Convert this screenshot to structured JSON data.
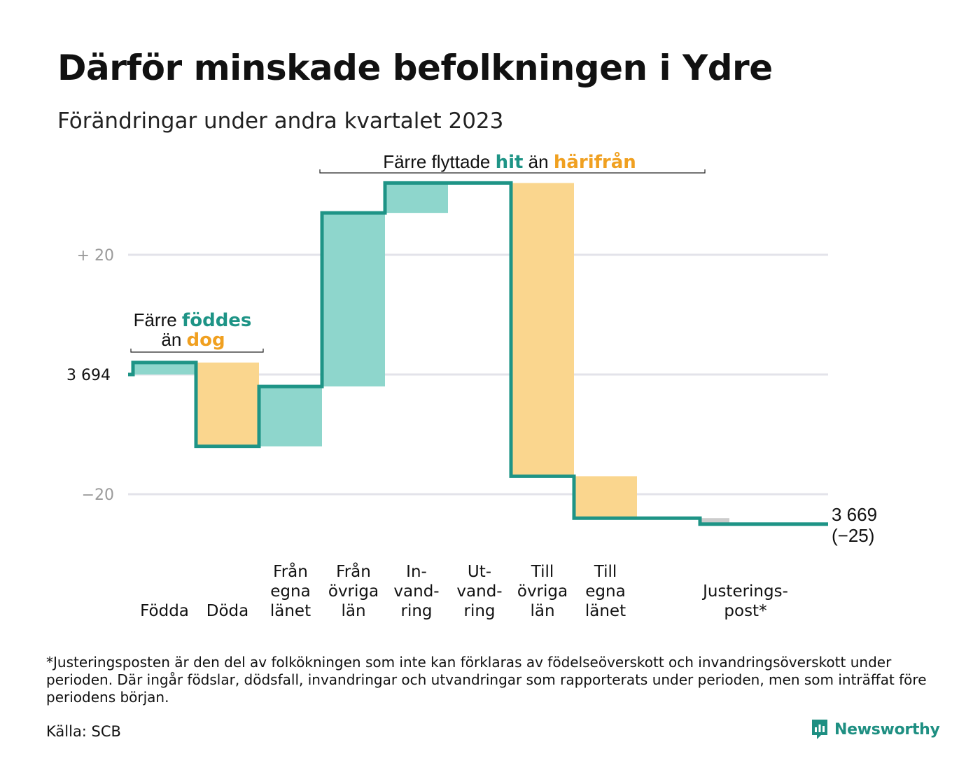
{
  "title": "Därför minskade befolkningen i Ydre",
  "subtitle": "Förändringar under andra kvartalet 2023",
  "footnote": "*Justeringsposten är den del av folkökningen som inte kan förklaras av födelseöverskott och invandringsöverskott under perioden. Där ingår födslar, dödsfall, invandringar och utvandringar som rapporterats under perioden, men som inträffat före periodens början.",
  "source": "Källa: SCB",
  "brand": "Newsworthy",
  "colors": {
    "teal_line": "#1e9486",
    "teal_fill": "#8ed6cc",
    "orange_fill": "#fad68e",
    "orange_text": "#f0a020",
    "teal_text": "#1e9486",
    "gray_fill": "#cccccc",
    "grid": "#e3e3ea"
  },
  "chart_data": {
    "type": "waterfall",
    "start_value": 3694,
    "end_value": 3669,
    "end_label": [
      "3 669",
      "(−25)"
    ],
    "start_label": "3  694",
    "y_ticks": [
      {
        "value": 20,
        "label": "+  20"
      },
      {
        "value": -20,
        "label": "−20"
      }
    ],
    "ylim": [
      -25,
      32
    ],
    "grid": true,
    "steps": [
      {
        "category": [
          "Födda"
        ],
        "change": 2,
        "kind": "in"
      },
      {
        "category": [
          "Döda"
        ],
        "change": -14,
        "kind": "out"
      },
      {
        "category": [
          "Från",
          "egna",
          "länet"
        ],
        "change": 10,
        "kind": "in"
      },
      {
        "category": [
          "Från",
          "övriga",
          "län"
        ],
        "change": 29,
        "kind": "in"
      },
      {
        "category": [
          "In-",
          "vand-",
          "ring"
        ],
        "change": 5,
        "kind": "in"
      },
      {
        "category": [
          "Ut-",
          "vand-",
          "ring"
        ],
        "change": 0,
        "kind": "out"
      },
      {
        "category": [
          "Till",
          "övriga",
          "län"
        ],
        "change": -49,
        "kind": "out"
      },
      {
        "category": [
          "Till",
          "egna",
          "länet"
        ],
        "change": -7,
        "kind": "out"
      },
      {
        "category": [],
        "change": 0,
        "kind": "none"
      },
      {
        "category": [
          "Justerings-",
          "post*"
        ],
        "change": -1,
        "kind": "adjust"
      }
    ],
    "annotations": [
      {
        "parts": [
          {
            "text": "Färre ",
            "style": "plain"
          },
          {
            "text": "föddes",
            "style": "teal"
          }
        ],
        "line2": [
          {
            "text": "än ",
            "style": "plain"
          },
          {
            "text": "dog",
            "style": "orange"
          }
        ]
      },
      {
        "parts": [
          {
            "text": "Färre flyttade ",
            "style": "plain"
          },
          {
            "text": "hit",
            "style": "teal"
          },
          {
            "text": " än ",
            "style": "plain"
          },
          {
            "text": "härifrån",
            "style": "orange"
          }
        ]
      }
    ]
  }
}
